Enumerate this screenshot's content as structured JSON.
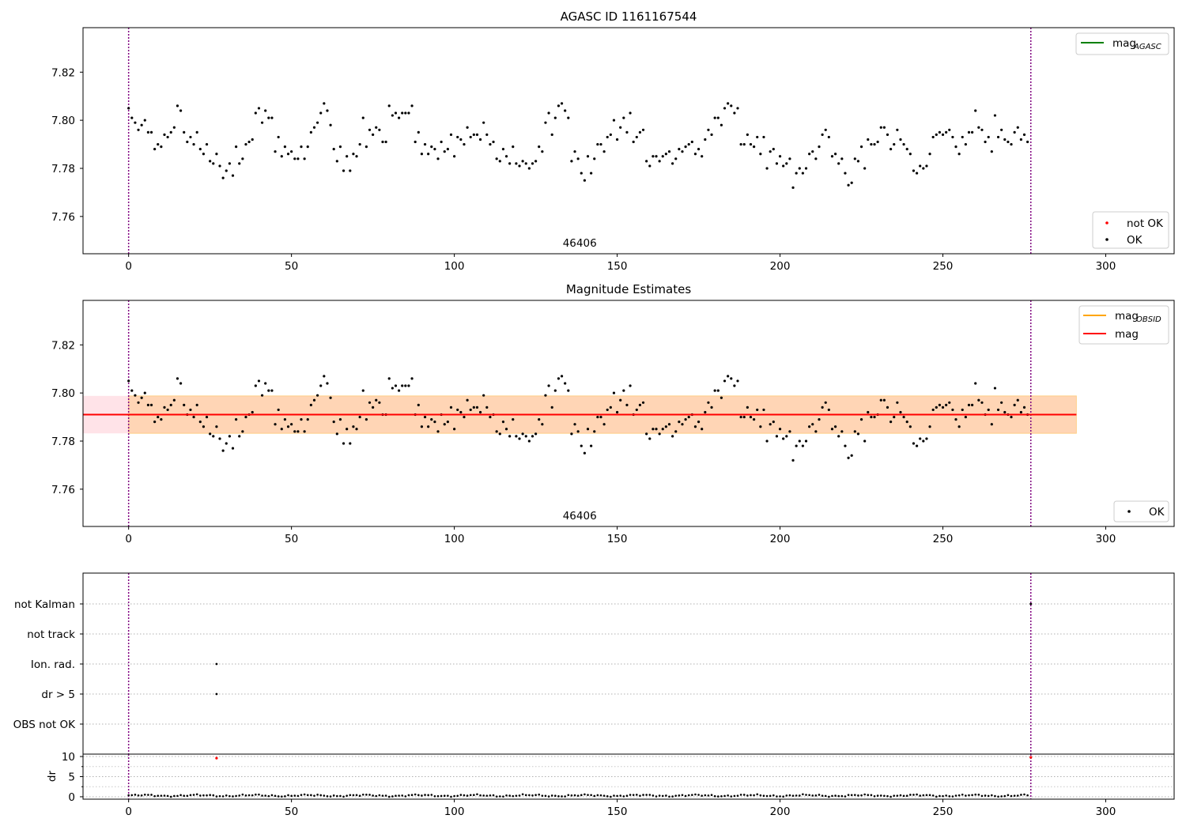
{
  "chart_data": [
    {
      "type": "scatter",
      "title": "AGASC ID 1161167544",
      "xlabel": "",
      "ylabel": "",
      "xlim": [
        -14,
        321
      ],
      "ylim": [
        7.7445,
        7.8385
      ],
      "xticks": [
        0,
        50,
        100,
        150,
        200,
        250,
        300
      ],
      "yticks": [
        7.76,
        7.78,
        7.8,
        7.82
      ],
      "ytick_labels": [
        "7.76",
        "7.78",
        "7.80",
        "7.82"
      ],
      "vlines": [
        0,
        277
      ],
      "obsid_label": {
        "text": "46406",
        "x": 138.5
      },
      "legend_upper": {
        "position": "upper right",
        "entries": [
          {
            "label": "mag",
            "sub": "AGASC",
            "color": "#008000"
          }
        ]
      },
      "legend_lower": {
        "position": "lower right",
        "entries": [
          {
            "label": "not OK",
            "color": "#ff0000"
          },
          {
            "label": "OK",
            "color": "#000000"
          }
        ]
      },
      "series": [
        {
          "name": "OK",
          "color": "#000000",
          "y": []
        }
      ]
    },
    {
      "type": "scatter",
      "title": "Magnitude Estimates",
      "xlabel": "",
      "ylabel": "",
      "xlim": [
        -14,
        321
      ],
      "ylim": [
        7.7445,
        7.8385
      ],
      "xticks": [
        0,
        50,
        100,
        150,
        200,
        250,
        300
      ],
      "yticks": [
        7.76,
        7.78,
        7.8,
        7.82
      ],
      "ytick_labels": [
        "7.76",
        "7.78",
        "7.80",
        "7.82"
      ],
      "vlines": [
        0,
        277
      ],
      "obsid_label": {
        "text": "46406",
        "x": 138.5
      },
      "mag_line": {
        "value": 7.791,
        "x": [
          -14,
          291
        ],
        "color": "#ff0000"
      },
      "mag_band": {
        "lo": 7.7832,
        "hi": 7.7988,
        "x": [
          -14,
          291
        ],
        "color": "#ffc0cb"
      },
      "obsid_band": {
        "lo": 7.7832,
        "hi": 7.7988,
        "x": [
          0,
          291
        ],
        "color": "#ffa500"
      },
      "legend_upper": {
        "position": "upper right",
        "entries": [
          {
            "label": "mag",
            "sub": "OBSID",
            "color": "#ffa500"
          },
          {
            "label": "mag",
            "sub": "",
            "color": "#ff0000"
          }
        ]
      },
      "legend_lower": {
        "position": "lower right",
        "entries": [
          {
            "label": "OK",
            "color": "#000000"
          }
        ]
      },
      "series": [
        {
          "name": "OK",
          "color": "#000000",
          "y": []
        }
      ]
    },
    {
      "type": "scatter",
      "title": "",
      "xlim": [
        -14,
        321
      ],
      "vlines": [
        0,
        277
      ],
      "flag_categories": [
        "not Kalman",
        "not track",
        "Ion. rad.",
        "dr > 5",
        "OBS not OK"
      ],
      "flag_points": [
        {
          "category": "not Kalman",
          "x": 277
        },
        {
          "category": "Ion. rad.",
          "x": 27
        },
        {
          "category": "dr > 5",
          "x": 27
        }
      ]
    },
    {
      "type": "scatter",
      "title": "",
      "xlabel": "",
      "ylabel": "dr",
      "xlim": [
        -14,
        321
      ],
      "ylim": [
        -0.6,
        10.6
      ],
      "xticks": [
        0,
        50,
        100,
        150,
        200,
        250,
        300
      ],
      "yticks": [
        0,
        5,
        10
      ],
      "ytick_labels": [
        "0",
        "5",
        "10"
      ],
      "vlines": [
        0,
        277
      ],
      "outliers": [
        {
          "x": 27,
          "y": 9.6,
          "color": "#ff0000"
        },
        {
          "x": 277,
          "y": 9.8,
          "color": "#ff0000"
        }
      ],
      "series": [
        {
          "name": "dr",
          "color": "#000000",
          "y": []
        }
      ]
    }
  ]
}
